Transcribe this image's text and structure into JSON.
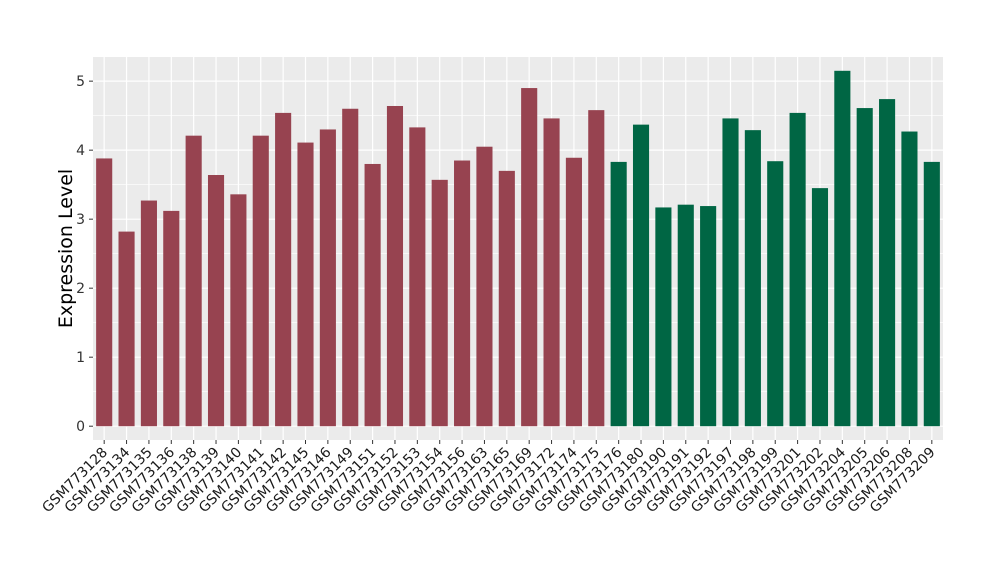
{
  "chart_data": {
    "type": "bar",
    "title": "",
    "xlabel": "",
    "ylabel": "Expression Level",
    "ylim": [
      -0.2,
      5.35
    ],
    "yticks": [
      0,
      1,
      2,
      3,
      4,
      5
    ],
    "grid": true,
    "legend": "none",
    "background": "#EBEBEB",
    "categories": [
      "GSM773128",
      "GSM773134",
      "GSM773135",
      "GSM773136",
      "GSM773138",
      "GSM773139",
      "GSM773140",
      "GSM773141",
      "GSM773142",
      "GSM773145",
      "GSM773146",
      "GSM773149",
      "GSM773151",
      "GSM773152",
      "GSM773153",
      "GSM773154",
      "GSM773156",
      "GSM773163",
      "GSM773165",
      "GSM773169",
      "GSM773172",
      "GSM773174",
      "GSM773175",
      "GSM773176",
      "GSM773180",
      "GSM773190",
      "GSM773191",
      "GSM773192",
      "GSM773197",
      "GSM773198",
      "GSM773199",
      "GSM773201",
      "GSM773202",
      "GSM773204",
      "GSM773205",
      "GSM773206",
      "GSM773208",
      "GSM773209"
    ],
    "values": [
      3.88,
      2.82,
      3.27,
      3.12,
      4.21,
      3.64,
      3.36,
      4.21,
      4.54,
      4.11,
      4.3,
      4.6,
      3.8,
      4.64,
      4.33,
      3.57,
      3.85,
      4.05,
      3.7,
      4.9,
      4.46,
      3.89,
      4.58,
      3.83,
      4.37,
      3.17,
      3.21,
      3.19,
      4.46,
      4.29,
      3.84,
      4.54,
      3.45,
      5.15,
      4.61,
      4.74,
      4.27,
      3.83
    ],
    "group_colors": [
      "#974350",
      "#006644"
    ],
    "group_sizes": [
      23,
      15
    ]
  }
}
